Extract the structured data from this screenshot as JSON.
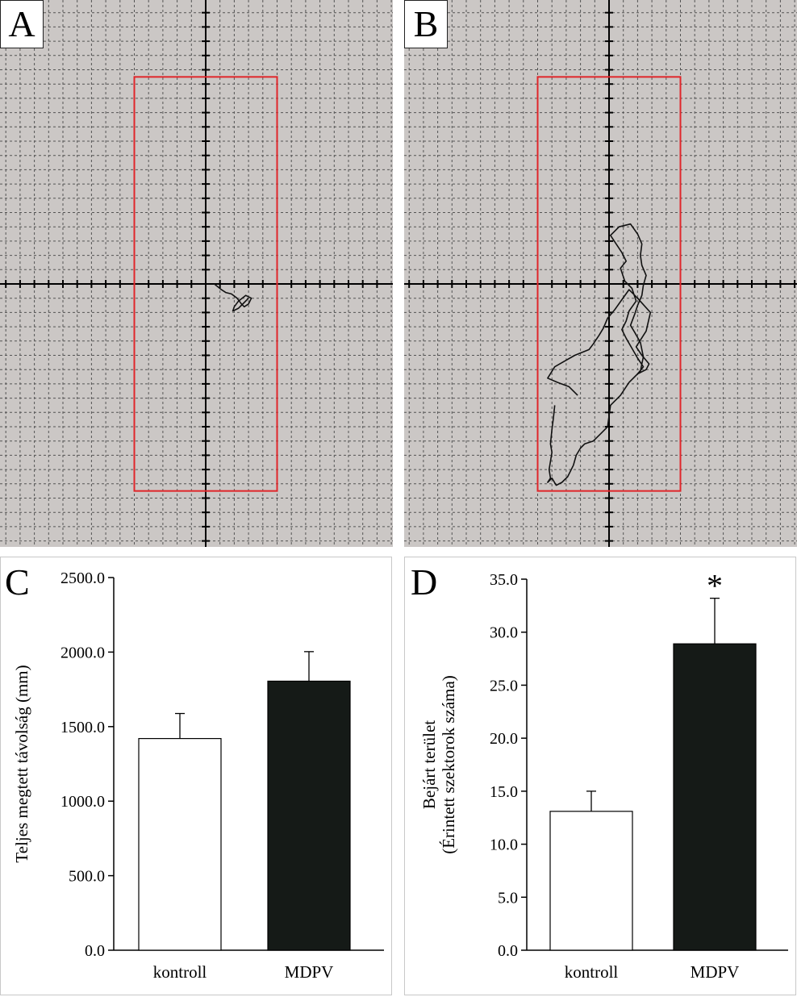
{
  "panels": {
    "a": {
      "letter": "A"
    },
    "b": {
      "letter": "B"
    },
    "c": {
      "letter": "C"
    },
    "d": {
      "letter": "D"
    }
  },
  "chart_data": [
    {
      "type": "line",
      "panel": "A",
      "grid": true,
      "arena_rectangle": {
        "x": [
          -5,
          5
        ],
        "y": [
          -14.5,
          14.5
        ]
      },
      "x": [
        0.6,
        1.1,
        1.4,
        1.8,
        2.2,
        2.5,
        2.7,
        3.0,
        3.2,
        2.8,
        2.3,
        2.0,
        1.9,
        2.3,
        2.7,
        3.0
      ],
      "y": [
        0.0,
        -0.4,
        -0.6,
        -0.7,
        -1.0,
        -1.4,
        -1.6,
        -1.4,
        -1.0,
        -0.8,
        -1.2,
        -1.6,
        -1.9,
        -1.7,
        -1.3,
        -1.0
      ]
    },
    {
      "type": "line",
      "panel": "B",
      "grid": true,
      "arena_rectangle": {
        "x": [
          -5,
          5
        ],
        "y": [
          -14.5,
          14.5
        ]
      },
      "x": [
        -3.8,
        -3.9,
        -4.0,
        -4.1,
        -4.0,
        -4.2,
        -4.1,
        -4.3,
        -4.0,
        -3.7,
        -3.3,
        -2.9,
        -2.5,
        -2.3,
        -2.0,
        -1.7,
        -1.1,
        -0.6,
        -0.1,
        0.1,
        0.8,
        1.4,
        2.2,
        2.4,
        2.2,
        1.8,
        1.5,
        1.8,
        2.0,
        2.3,
        2.4,
        2.6,
        2.3,
        2.2,
        2.3,
        2.0,
        1.5,
        0.7,
        0.1,
        0.9,
        1.2,
        0.8,
        1.1,
        1.6,
        1.9,
        1.4,
        1.2,
        0.9,
        1.2,
        1.6,
        2.0,
        2.4,
        2.0,
        2.6,
        2.8,
        2.3,
        1.9,
        2.6,
        2.9,
        2.0,
        1.4,
        0.9,
        0.4,
        -0.1,
        -0.4,
        -0.7,
        -1.1,
        -1.4,
        -2.4,
        -3.1,
        -3.8,
        -4.3,
        -3.6,
        -2.8,
        -2.2
      ],
      "y": [
        -8.5,
        -9.4,
        -10.2,
        -11.2,
        -11.8,
        -13.0,
        -13.6,
        -13.9,
        -13.6,
        -14.1,
        -13.9,
        -13.5,
        -12.7,
        -12.0,
        -11.5,
        -11.2,
        -11.0,
        -10.5,
        -10.0,
        -8.5,
        -7.8,
        -6.9,
        -6.1,
        -5.1,
        -4.1,
        -3.4,
        -2.9,
        -2.1,
        -1.5,
        -0.8,
        -0.1,
        0.6,
        1.3,
        2.0,
        2.8,
        3.5,
        4.2,
        4.0,
        3.4,
        2.2,
        1.6,
        1.1,
        0.2,
        -0.3,
        -1.2,
        -1.9,
        -2.6,
        -3.2,
        -3.8,
        -4.5,
        -5.2,
        -5.8,
        -6.3,
        -6.0,
        -5.6,
        -5.0,
        -4.4,
        -3.3,
        -2.0,
        -1.0,
        -0.4,
        -1.1,
        -1.8,
        -2.4,
        -3.1,
        -3.6,
        -4.2,
        -4.6,
        -5.0,
        -5.4,
        -5.8,
        -6.6,
        -6.9,
        -7.2,
        -7.8
      ]
    },
    {
      "type": "bar",
      "panel": "C",
      "categories": [
        "kontroll",
        "MDPV"
      ],
      "values": [
        1420,
        1805
      ],
      "error": [
        168,
        198
      ],
      "colors": [
        "#ffffff",
        "#151a17"
      ],
      "ylabel": "Teljes megtett távolság (mm)",
      "ylim": [
        0,
        2500
      ],
      "yticks": [
        "0.0",
        "500.0",
        "1000.0",
        "1500.0",
        "2000.0",
        "2500.0"
      ]
    },
    {
      "type": "bar",
      "panel": "D",
      "categories": [
        "kontroll",
        "MDPV"
      ],
      "values": [
        13.1,
        28.9
      ],
      "error": [
        1.9,
        4.3
      ],
      "colors": [
        "#ffffff",
        "#151a17"
      ],
      "ylabel_line1": "Bejárt terület",
      "ylabel_line2": "(Érintett szektorok száma)",
      "ylim": [
        0,
        35
      ],
      "yticks": [
        "0.0",
        "5.0",
        "10.0",
        "15.0",
        "20.0",
        "25.0",
        "30.0",
        "35.0"
      ],
      "significance_mark": "*"
    }
  ]
}
